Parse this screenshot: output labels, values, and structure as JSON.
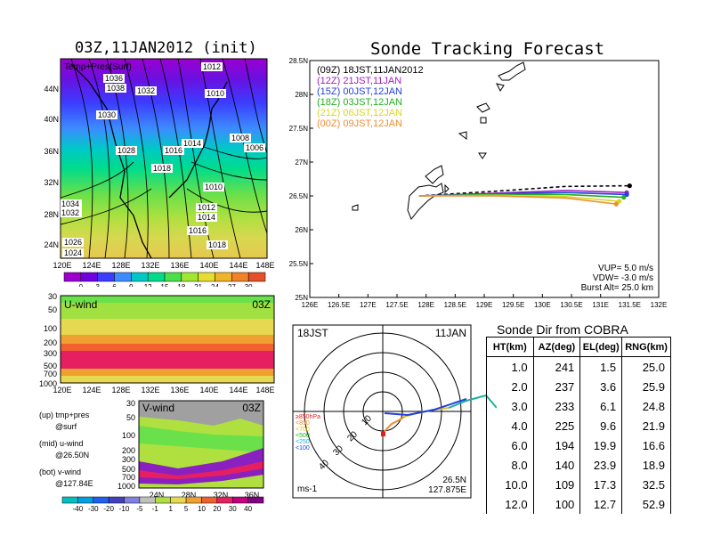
{
  "main_map": {
    "title": "03Z,11JAN2012 (init)",
    "overlay_label": "Temp+Pres(Surf)",
    "lat_labels": [
      "44N",
      "40N",
      "36N",
      "32N",
      "28N",
      "24N"
    ],
    "lon_labels": [
      "120E",
      "124E",
      "128E",
      "132E",
      "136E",
      "140E",
      "144E",
      "148E"
    ],
    "isobar_labels": [
      "1036",
      "1038",
      "1032",
      "1030",
      "1012",
      "1010",
      "1028",
      "1016",
      "1018",
      "1014",
      "1008",
      "1006",
      "1010",
      "1012",
      "1014",
      "1016",
      "1018",
      "1034",
      "1032",
      "1026",
      "1024"
    ],
    "colorbar_ticks": [
      "0",
      "3",
      "6",
      "9",
      "12",
      "15",
      "18",
      "21",
      "24",
      "27",
      "30"
    ],
    "colorbar_colors": [
      "#9b00d0",
      "#7000e0",
      "#3c3cff",
      "#3c8cff",
      "#00c8c8",
      "#00dc8c",
      "#4ae04a",
      "#a0e632",
      "#e6dc32",
      "#f0b428",
      "#f08228",
      "#e65028"
    ]
  },
  "uwind_panel": {
    "label": "U-wind",
    "time": "03Z",
    "p_labels": [
      "30",
      "50",
      "100",
      "200",
      "300",
      "500",
      "700",
      "1000"
    ],
    "lon_labels": [
      "120E",
      "124E",
      "128E",
      "132E",
      "136E",
      "140E",
      "144E",
      "148E"
    ]
  },
  "vwind_panel": {
    "label": "V-wind",
    "time": "03Z",
    "p_labels": [
      "30",
      "50",
      "100",
      "200",
      "300",
      "500",
      "700",
      "1000"
    ],
    "lat_labels": [
      "24N",
      "28N",
      "32N",
      "36N"
    ],
    "colorbar_ticks": [
      "-40",
      "-30",
      "-20",
      "-10",
      "-5",
      "-1",
      "1",
      "5",
      "10",
      "20",
      "30",
      "40"
    ]
  },
  "legend_notes": {
    "up": "(up) tmp+pres",
    "up2": "@surf",
    "mid": "(mid) u-wind",
    "mid2": "@26.50N",
    "bot": "(bot) v-wind",
    "bot2": "@127.84E"
  },
  "chart_data": {
    "type": "line",
    "title": "Sonde Tracking Forecast",
    "xlim": [
      126,
      132
    ],
    "ylim": [
      25,
      28.5
    ],
    "x_ticks": [
      "126E",
      "126.5E",
      "127E",
      "127.5E",
      "128E",
      "128.5E",
      "129E",
      "129.5E",
      "130E",
      "130.5E",
      "131E",
      "131.5E",
      "132E"
    ],
    "y_ticks": [
      "25N",
      "25.5N",
      "26N",
      "26.5N",
      "27N",
      "27.5N",
      "28N",
      "28.5N"
    ],
    "series": [
      {
        "name": "(09Z)  18JST,11JAN2012",
        "color": "#000000",
        "x": [
          127.88,
          129.2,
          130.4,
          131.5
        ],
        "y": [
          26.5,
          26.57,
          26.64,
          26.65
        ]
      },
      {
        "name": "(12Z)  21JST,11JAN",
        "color": "#a020c0",
        "x": [
          127.88,
          129.2,
          130.4,
          131.45
        ],
        "y": [
          26.5,
          26.54,
          26.58,
          26.55
        ]
      },
      {
        "name": "(15Z)  00JST,12JAN",
        "color": "#2040e0",
        "x": [
          127.88,
          129.2,
          130.4,
          131.45
        ],
        "y": [
          26.5,
          26.53,
          26.55,
          26.52
        ]
      },
      {
        "name": "(18Z)  03JST,12JAN",
        "color": "#20b020",
        "x": [
          127.88,
          129.2,
          130.4,
          131.4
        ],
        "y": [
          26.5,
          26.52,
          26.52,
          26.48
        ]
      },
      {
        "name": "(21Z)  06JST,12JAN",
        "color": "#d8d820",
        "x": [
          127.88,
          129.2,
          130.4,
          131.32
        ],
        "y": [
          26.5,
          26.51,
          26.49,
          26.42
        ]
      },
      {
        "name": "(00Z)  09JST,12JAN",
        "color": "#f08c30",
        "x": [
          127.88,
          129.2,
          130.4,
          131.27
        ],
        "y": [
          26.5,
          26.5,
          26.47,
          26.38
        ]
      }
    ],
    "params": {
      "vup": "VUP=  5.0  m/s",
      "vdw": "VDW= -3.0  m/s",
      "burst": "Burst Alt= 25.0  km"
    }
  },
  "polar_panel": {
    "time_left": "18JST",
    "time_right": "11JAN",
    "unit": "ms-1",
    "location_lat": "26.5N",
    "location_lon": "127.875E",
    "ring_labels": [
      "10",
      "20",
      "30",
      "40"
    ],
    "level_legend": [
      {
        "text": "≥850hPa",
        "color": "#e02020"
      },
      {
        "text": "<850",
        "color": "#f08c30"
      },
      {
        "text": "<700",
        "color": "#e0c030"
      },
      {
        "text": "<500",
        "color": "#20b020"
      },
      {
        "text": "<250",
        "color": "#20b0e0"
      },
      {
        "text": "<100",
        "color": "#2040e0"
      }
    ]
  },
  "sonde_table": {
    "title": "Sonde Dir from COBRA",
    "headers": [
      "HT(km)",
      "AZ(deg)",
      "EL(deg)",
      "RNG(km)"
    ],
    "rows": [
      [
        "1.0",
        "241",
        "1.5",
        "25.0"
      ],
      [
        "2.0",
        "237",
        "3.6",
        "25.9"
      ],
      [
        "3.0",
        "233",
        "6.1",
        "24.8"
      ],
      [
        "4.0",
        "225",
        "9.6",
        "21.9"
      ],
      [
        "6.0",
        "194",
        "19.9",
        "16.6"
      ],
      [
        "8.0",
        "140",
        "23.9",
        "18.9"
      ],
      [
        "10.0",
        "109",
        "17.3",
        "32.5"
      ],
      [
        "12.0",
        "100",
        "12.7",
        "52.9"
      ]
    ]
  }
}
